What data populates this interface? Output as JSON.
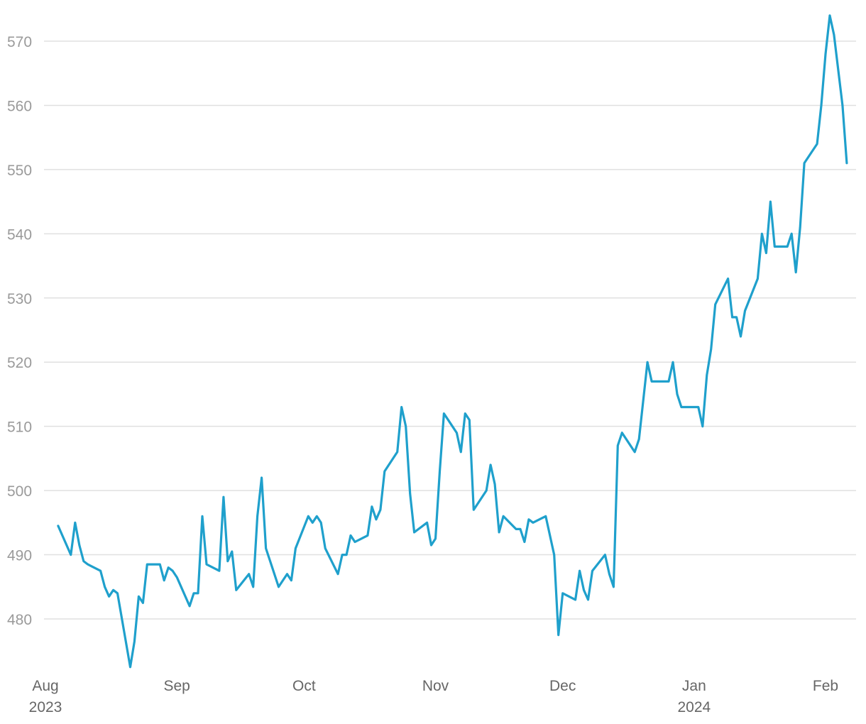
{
  "chart_data": {
    "type": "line",
    "title": "",
    "xlabel": "",
    "ylabel": "",
    "ylim": [
      472,
      575
    ],
    "xlim": [
      "2023-07-31",
      "2024-02-09"
    ],
    "grid": true,
    "line_color": "#1fa0cc",
    "y_ticks": [
      480,
      490,
      500,
      510,
      520,
      530,
      540,
      550,
      560,
      570
    ],
    "x_ticks": [
      {
        "date": "2023-08-01",
        "label": "Aug",
        "sublabel": "2023"
      },
      {
        "date": "2023-09-01",
        "label": "Sep",
        "sublabel": ""
      },
      {
        "date": "2023-10-01",
        "label": "Oct",
        "sublabel": ""
      },
      {
        "date": "2023-11-01",
        "label": "Nov",
        "sublabel": ""
      },
      {
        "date": "2023-12-01",
        "label": "Dec",
        "sublabel": ""
      },
      {
        "date": "2024-01-01",
        "label": "Jan",
        "sublabel": "2024"
      },
      {
        "date": "2024-02-01",
        "label": "Feb",
        "sublabel": ""
      }
    ],
    "series": [
      {
        "name": "",
        "points": [
          [
            "2023-08-04",
            494.5
          ],
          [
            "2023-08-07",
            490.0
          ],
          [
            "2023-08-08",
            495.0
          ],
          [
            "2023-08-09",
            491.5
          ],
          [
            "2023-08-10",
            489.0
          ],
          [
            "2023-08-11",
            488.5
          ],
          [
            "2023-08-14",
            487.5
          ],
          [
            "2023-08-15",
            485.0
          ],
          [
            "2023-08-16",
            483.5
          ],
          [
            "2023-08-17",
            484.5
          ],
          [
            "2023-08-18",
            484.0
          ],
          [
            "2023-08-21",
            472.5
          ],
          [
            "2023-08-22",
            476.5
          ],
          [
            "2023-08-23",
            483.5
          ],
          [
            "2023-08-24",
            482.5
          ],
          [
            "2023-08-25",
            488.5
          ],
          [
            "2023-08-28",
            488.5
          ],
          [
            "2023-08-29",
            486.0
          ],
          [
            "2023-08-30",
            488.0
          ],
          [
            "2023-08-31",
            487.5
          ],
          [
            "2023-09-01",
            486.5
          ],
          [
            "2023-09-04",
            482.0
          ],
          [
            "2023-09-05",
            484.0
          ],
          [
            "2023-09-06",
            484.0
          ],
          [
            "2023-09-07",
            496.0
          ],
          [
            "2023-09-08",
            488.5
          ],
          [
            "2023-09-11",
            487.5
          ],
          [
            "2023-09-12",
            499.0
          ],
          [
            "2023-09-13",
            489.0
          ],
          [
            "2023-09-14",
            490.5
          ],
          [
            "2023-09-15",
            484.5
          ],
          [
            "2023-09-18",
            487.0
          ],
          [
            "2023-09-19",
            485.0
          ],
          [
            "2023-09-20",
            496.0
          ],
          [
            "2023-09-21",
            502.0
          ],
          [
            "2023-09-22",
            491.0
          ],
          [
            "2023-09-25",
            485.0
          ],
          [
            "2023-09-27",
            487.0
          ],
          [
            "2023-09-28",
            486.0
          ],
          [
            "2023-09-29",
            491.0
          ],
          [
            "2023-10-02",
            496.0
          ],
          [
            "2023-10-03",
            495.0
          ],
          [
            "2023-10-04",
            496.0
          ],
          [
            "2023-10-05",
            495.0
          ],
          [
            "2023-10-06",
            491.0
          ],
          [
            "2023-10-09",
            487.0
          ],
          [
            "2023-10-10",
            490.0
          ],
          [
            "2023-10-11",
            490.0
          ],
          [
            "2023-10-12",
            493.0
          ],
          [
            "2023-10-13",
            492.0
          ],
          [
            "2023-10-16",
            493.0
          ],
          [
            "2023-10-17",
            497.5
          ],
          [
            "2023-10-18",
            495.5
          ],
          [
            "2023-10-19",
            497.0
          ],
          [
            "2023-10-20",
            503.0
          ],
          [
            "2023-10-23",
            506.0
          ],
          [
            "2023-10-24",
            513.0
          ],
          [
            "2023-10-25",
            510.0
          ],
          [
            "2023-10-26",
            499.5
          ],
          [
            "2023-10-27",
            493.5
          ],
          [
            "2023-10-30",
            495.0
          ],
          [
            "2023-10-31",
            491.5
          ],
          [
            "2023-11-01",
            492.5
          ],
          [
            "2023-11-02",
            503.0
          ],
          [
            "2023-11-03",
            512.0
          ],
          [
            "2023-11-06",
            509.0
          ],
          [
            "2023-11-07",
            506.0
          ],
          [
            "2023-11-08",
            512.0
          ],
          [
            "2023-11-09",
            511.0
          ],
          [
            "2023-11-10",
            497.0
          ],
          [
            "2023-11-13",
            500.0
          ],
          [
            "2023-11-14",
            504.0
          ],
          [
            "2023-11-15",
            501.0
          ],
          [
            "2023-11-16",
            493.5
          ],
          [
            "2023-11-17",
            496.0
          ],
          [
            "2023-11-20",
            494.0
          ],
          [
            "2023-11-21",
            494.0
          ],
          [
            "2023-11-22",
            492.0
          ],
          [
            "2023-11-23",
            495.5
          ],
          [
            "2023-11-24",
            495.0
          ],
          [
            "2023-11-27",
            496.0
          ],
          [
            "2023-11-29",
            490.0
          ],
          [
            "2023-11-30",
            477.5
          ],
          [
            "2023-12-01",
            484.0
          ],
          [
            "2023-12-04",
            483.0
          ],
          [
            "2023-12-05",
            487.5
          ],
          [
            "2023-12-06",
            484.5
          ],
          [
            "2023-12-07",
            483.0
          ],
          [
            "2023-12-08",
            487.5
          ],
          [
            "2023-12-11",
            490.0
          ],
          [
            "2023-12-12",
            487.0
          ],
          [
            "2023-12-13",
            485.0
          ],
          [
            "2023-12-14",
            507.0
          ],
          [
            "2023-12-15",
            509.0
          ],
          [
            "2023-12-18",
            506.0
          ],
          [
            "2023-12-19",
            508.0
          ],
          [
            "2023-12-21",
            520.0
          ],
          [
            "2023-12-22",
            517.0
          ],
          [
            "2023-12-26",
            517.0
          ],
          [
            "2023-12-27",
            520.0
          ],
          [
            "2023-12-28",
            515.0
          ],
          [
            "2023-12-29",
            513.0
          ],
          [
            "2024-01-02",
            513.0
          ],
          [
            "2024-01-03",
            510.0
          ],
          [
            "2024-01-04",
            518.0
          ],
          [
            "2024-01-05",
            522.0
          ],
          [
            "2024-01-06",
            529.0
          ],
          [
            "2024-01-09",
            533.0
          ],
          [
            "2024-01-10",
            527.0
          ],
          [
            "2024-01-11",
            527.0
          ],
          [
            "2024-01-12",
            524.0
          ],
          [
            "2024-01-13",
            528.0
          ],
          [
            "2024-01-16",
            533.0
          ],
          [
            "2024-01-17",
            540.0
          ],
          [
            "2024-01-18",
            537.0
          ],
          [
            "2024-01-19",
            545.0
          ],
          [
            "2024-01-20",
            538.0
          ],
          [
            "2024-01-23",
            538.0
          ],
          [
            "2024-01-24",
            540.0
          ],
          [
            "2024-01-25",
            534.0
          ],
          [
            "2024-01-26",
            541.0
          ],
          [
            "2024-01-27",
            551.0
          ],
          [
            "2024-01-30",
            554.0
          ],
          [
            "2024-01-31",
            560.0
          ],
          [
            "2024-02-01",
            568.0
          ],
          [
            "2024-02-02",
            574.0
          ],
          [
            "2024-02-03",
            571.0
          ],
          [
            "2024-02-05",
            560.0
          ],
          [
            "2024-02-06",
            551.0
          ]
        ]
      }
    ]
  }
}
